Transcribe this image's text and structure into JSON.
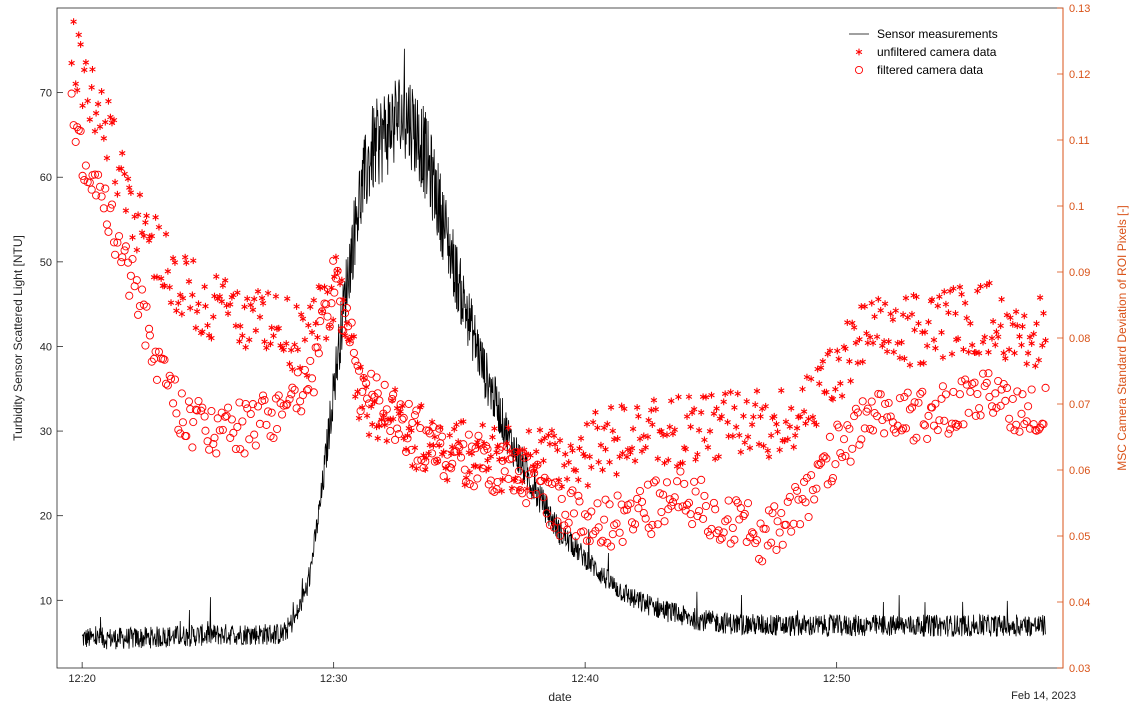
{
  "chart_data": {
    "type": "line+scatter",
    "xlabel": "date",
    "date_label": "Feb 14, 2023",
    "ylabel_left": "Turbidity Sensor Scattered Light [NTU]",
    "ylabel_right": "MSC Camera Standard Deviation of ROI Pixels [-]",
    "xlim": [
      "12:19",
      "12:59"
    ],
    "x_ticks": [
      "12:20",
      "12:30",
      "12:40",
      "12:50"
    ],
    "ylim_left": [
      2,
      80
    ],
    "yticks_left": [
      10,
      20,
      30,
      40,
      50,
      60,
      70
    ],
    "ylim_right": [
      0.03,
      0.13
    ],
    "yticks_right": [
      0.03,
      0.04,
      0.05,
      0.06,
      0.07,
      0.08,
      0.09,
      0.1,
      0.11,
      0.12,
      0.13
    ],
    "legend_position": "top-right",
    "colors": {
      "sensor": "#000000",
      "camera": "#FF0000",
      "right_axis": "#D95319"
    },
    "series": [
      {
        "name": "Sensor measurements",
        "axis": "left",
        "style": "line",
        "x": [
          "12:20",
          "12:22",
          "12:24",
          "12:26",
          "12:28",
          "12:28.5",
          "12:29",
          "12:29.5",
          "12:30",
          "12:30.5",
          "12:31",
          "12:31.5",
          "12:32",
          "12:32.5",
          "12:33",
          "12:33.5",
          "12:34",
          "12:34.5",
          "12:35",
          "12:36",
          "12:37",
          "12:38",
          "12:39",
          "12:40",
          "12:41",
          "12:42",
          "12:43",
          "12:44",
          "12:45",
          "12:46",
          "12:48",
          "12:50",
          "12:52",
          "12:54",
          "12:56",
          "12:58"
        ],
        "y": [
          5.5,
          5.5,
          5.8,
          6,
          6,
          8,
          12,
          22,
          35,
          47,
          57,
          63,
          65,
          67,
          67,
          64,
          59,
          53,
          47,
          37,
          29,
          23,
          18,
          15,
          12,
          10,
          9,
          8,
          7.5,
          7.2,
          7,
          7,
          7,
          7,
          7,
          7
        ]
      },
      {
        "name": "unfiltered camera data",
        "axis": "right",
        "style": "asterisk",
        "x": [
          "12:19.5",
          "12:20",
          "12:20.5",
          "12:21",
          "12:21.5",
          "12:22",
          "12:23",
          "12:24",
          "12:25",
          "12:26",
          "12:27",
          "12:28",
          "12:29",
          "12:30",
          "12:30.5",
          "12:31",
          "12:31.5",
          "12:32",
          "12:33",
          "12:34",
          "12:35",
          "12:36",
          "12:37",
          "12:38",
          "12:39",
          "12:40",
          "12:41",
          "12:42",
          "12:43",
          "12:44",
          "12:45",
          "12:46",
          "12:47",
          "12:48",
          "12:49",
          "12:50",
          "12:51",
          "12:52",
          "12:53",
          "12:54",
          "12:55",
          "12:56",
          "12:57",
          "12:58"
        ],
        "y": [
          0.124,
          0.12,
          0.116,
          0.112,
          0.106,
          0.1,
          0.093,
          0.088,
          0.085,
          0.084,
          0.082,
          0.081,
          0.079,
          0.088,
          0.085,
          0.072,
          0.07,
          0.068,
          0.066,
          0.064,
          0.063,
          0.062,
          0.062,
          0.061,
          0.062,
          0.063,
          0.064,
          0.065,
          0.066,
          0.066,
          0.066,
          0.067,
          0.067,
          0.068,
          0.069,
          0.075,
          0.08,
          0.081,
          0.081,
          0.082,
          0.083,
          0.083,
          0.082,
          0.081
        ]
      },
      {
        "name": "filtered camera data",
        "axis": "right",
        "style": "circle",
        "x": [
          "12:19.5",
          "12:20",
          "12:20.5",
          "12:21",
          "12:21.5",
          "12:22",
          "12:23",
          "12:24",
          "12:25",
          "12:26",
          "12:27",
          "12:28",
          "12:29",
          "12:30",
          "12:30.5",
          "12:31",
          "12:31.5",
          "12:32",
          "12:33",
          "12:34",
          "12:35",
          "12:36",
          "12:37",
          "12:38",
          "12:39",
          "12:40",
          "12:41",
          "12:42",
          "12:43",
          "12:44",
          "12:45",
          "12:46",
          "12:47",
          "12:48",
          "12:49",
          "12:50",
          "12:51",
          "12:52",
          "12:53",
          "12:54",
          "12:55",
          "12:56",
          "12:57",
          "12:58"
        ],
        "y": [
          0.115,
          0.108,
          0.103,
          0.098,
          0.094,
          0.088,
          0.077,
          0.068,
          0.066,
          0.066,
          0.067,
          0.07,
          0.072,
          0.088,
          0.083,
          0.073,
          0.071,
          0.069,
          0.066,
          0.063,
          0.062,
          0.061,
          0.06,
          0.058,
          0.054,
          0.052,
          0.052,
          0.053,
          0.055,
          0.056,
          0.054,
          0.052,
          0.05,
          0.053,
          0.056,
          0.063,
          0.067,
          0.068,
          0.068,
          0.069,
          0.07,
          0.071,
          0.07,
          0.069
        ]
      }
    ]
  }
}
